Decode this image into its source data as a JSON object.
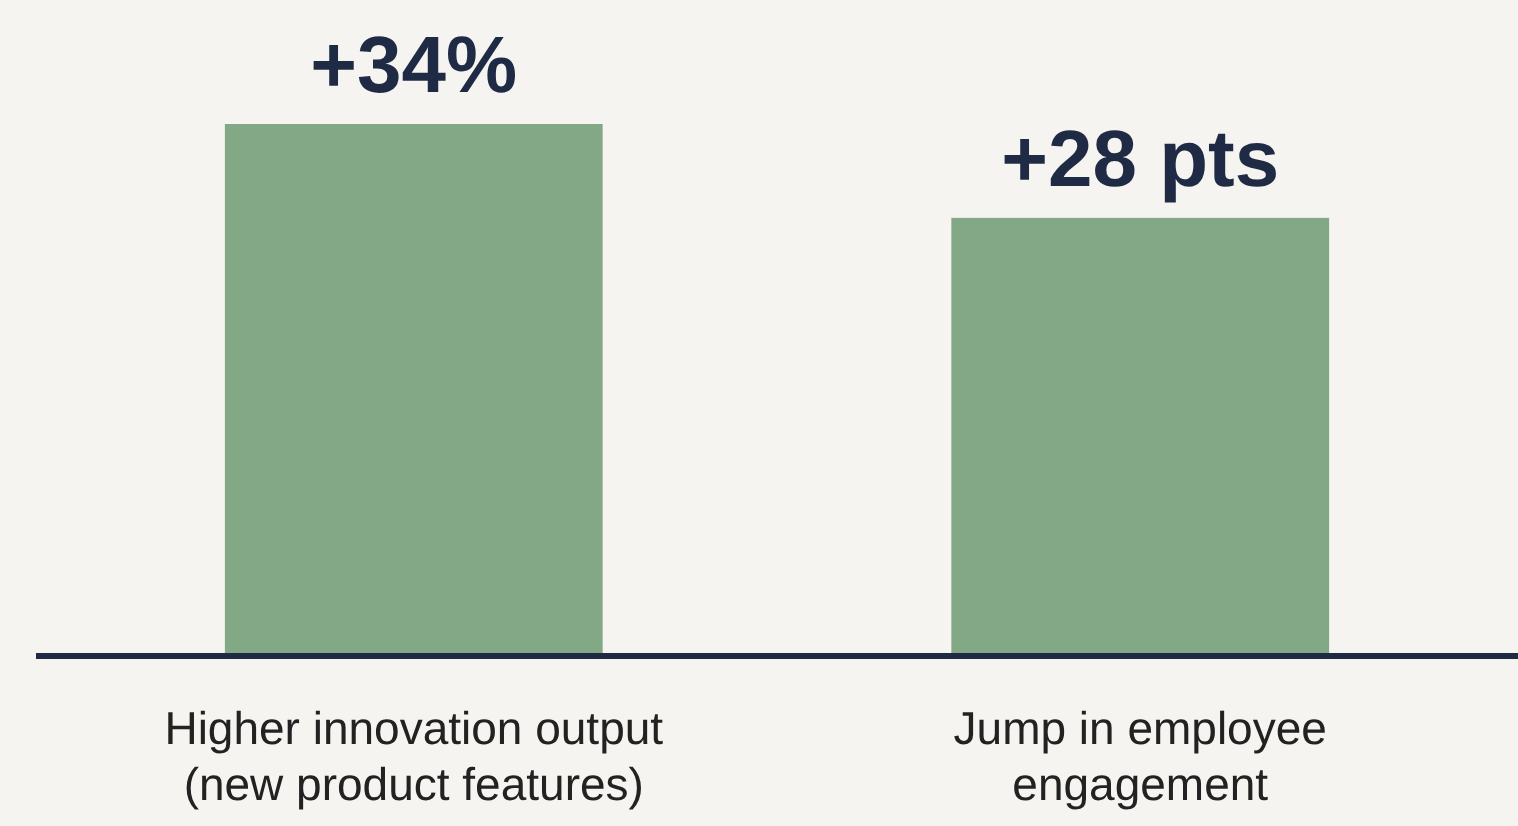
{
  "chart_data": {
    "type": "bar",
    "categories": [
      "Higher innovation output (new product features)",
      "Jump in employee engagement"
    ],
    "values": [
      34,
      28
    ],
    "color": "#82a886",
    "value_labels": [
      "+34%",
      "+28 pts"
    ]
  }
}
